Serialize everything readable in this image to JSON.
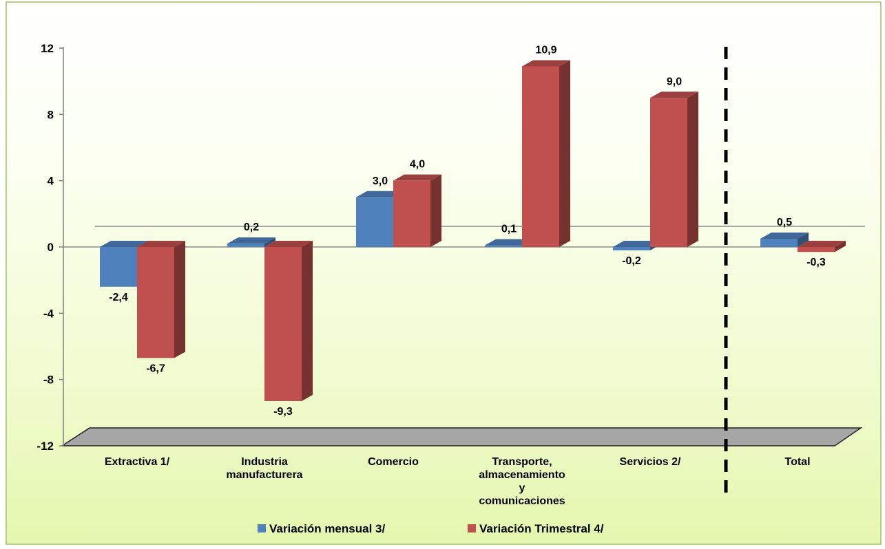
{
  "chart_data": {
    "type": "bar",
    "categories": [
      [
        "Extractiva 1/"
      ],
      [
        "Industria",
        "manufacturera"
      ],
      [
        "Comercio"
      ],
      [
        "Transporte,",
        "almacenamiento",
        "y",
        "comunicaciones"
      ],
      [
        "Servicios 2/"
      ],
      [
        "Total"
      ]
    ],
    "series": [
      {
        "name": "Variación mensual 3/",
        "values": [
          -2.4,
          0.2,
          3.0,
          0.1,
          -0.2,
          0.5
        ],
        "labels": [
          "-2,4",
          "0,2",
          "3,0",
          "0,1",
          "-0,2",
          "0,5"
        ],
        "color": "#4f81bd"
      },
      {
        "name": "Variación Trimestral 4/",
        "values": [
          -6.7,
          -9.3,
          4.0,
          10.9,
          9.0,
          -0.3
        ],
        "labels": [
          "-6,7",
          "-9,3",
          "4,0",
          "10,9",
          "9,0",
          "-0,3"
        ],
        "color": "#c0504d"
      }
    ],
    "ylim": [
      -12,
      12
    ],
    "yticks": [
      "12",
      "8",
      "4",
      "0",
      "-4",
      "-8",
      "-12"
    ],
    "legend_position": "bottom",
    "separator": "dashed line before Total"
  }
}
